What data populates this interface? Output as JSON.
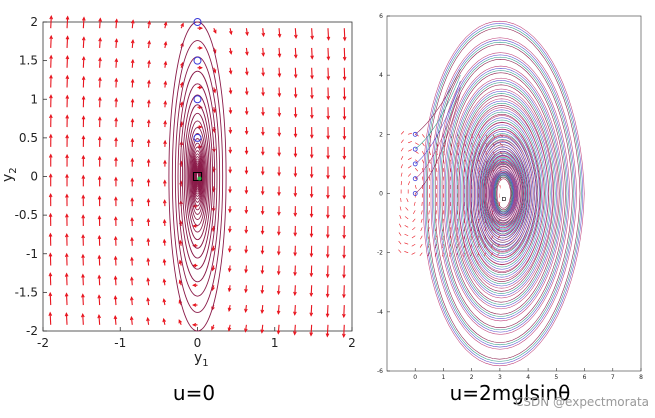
{
  "chart_data": [
    {
      "type": "vector-field",
      "caption": "u=0",
      "xlabel": "y",
      "xlabel_sub": "1",
      "ylabel": "y",
      "ylabel_sub": "2",
      "xlim": [
        -2,
        2
      ],
      "ylim": [
        -2,
        2
      ],
      "xticks": [
        -2,
        -1,
        0,
        1,
        2
      ],
      "yticks": [
        -2,
        -1.5,
        -1,
        -0.5,
        0,
        0.5,
        1,
        1.5,
        2
      ],
      "xtick_labels": [
        "-2",
        "-1",
        "0",
        "1",
        "2"
      ],
      "ytick_labels": [
        "-2",
        "-1.5",
        "-1",
        "-0.5",
        "0",
        "0.5",
        "1",
        "1.5",
        "2"
      ],
      "arrow_color": "#e8141e",
      "trajectory_color": "#8b1c4a",
      "initial_points": [
        {
          "x": 0,
          "y": 2
        },
        {
          "x": 0,
          "y": 1.5
        },
        {
          "x": 0,
          "y": 1
        },
        {
          "x": 0,
          "y": 0.5
        }
      ],
      "initial_marker_color": "#3a3ad8",
      "equilibrium": {
        "x": 0,
        "y": 0
      },
      "trajectory_max_semiaxes": {
        "y1": 0.37,
        "y2": 2.0
      }
    },
    {
      "type": "vector-field",
      "caption": "u=2mglsinθ",
      "xlim": [
        -1,
        8
      ],
      "ylim": [
        -6,
        6
      ],
      "xticks": [
        0,
        1,
        2,
        3,
        4,
        5,
        6,
        7,
        8
      ],
      "yticks": [
        -6,
        -4,
        -2,
        0,
        2,
        4,
        6
      ],
      "xtick_labels": [
        "0",
        "1",
        "2",
        "3",
        "4",
        "5",
        "6",
        "7",
        "8"
      ],
      "ytick_labels": [
        "-6",
        "-4",
        "-2",
        "0",
        "2",
        "4",
        "6"
      ],
      "arrow_color": "#e8141e",
      "trajectory_colors": [
        "#8b1c4a",
        "#2e9b8a",
        "#5a4fcf",
        "#c0417a"
      ],
      "initial_points": [
        {
          "x": 0,
          "y": 2
        },
        {
          "x": 0,
          "y": 1.5
        },
        {
          "x": 0,
          "y": 1
        },
        {
          "x": 0,
          "y": 0.5
        },
        {
          "x": 0,
          "y": 0
        }
      ],
      "initial_marker_color": "#3a3ad8",
      "equilibrium": {
        "x": 3.14,
        "y": 0
      },
      "field_x_range": [
        -0.5,
        3.0
      ],
      "field_y_range": [
        -2.0,
        2.0
      ]
    }
  ],
  "watermark": "CSDN @expectmorata"
}
